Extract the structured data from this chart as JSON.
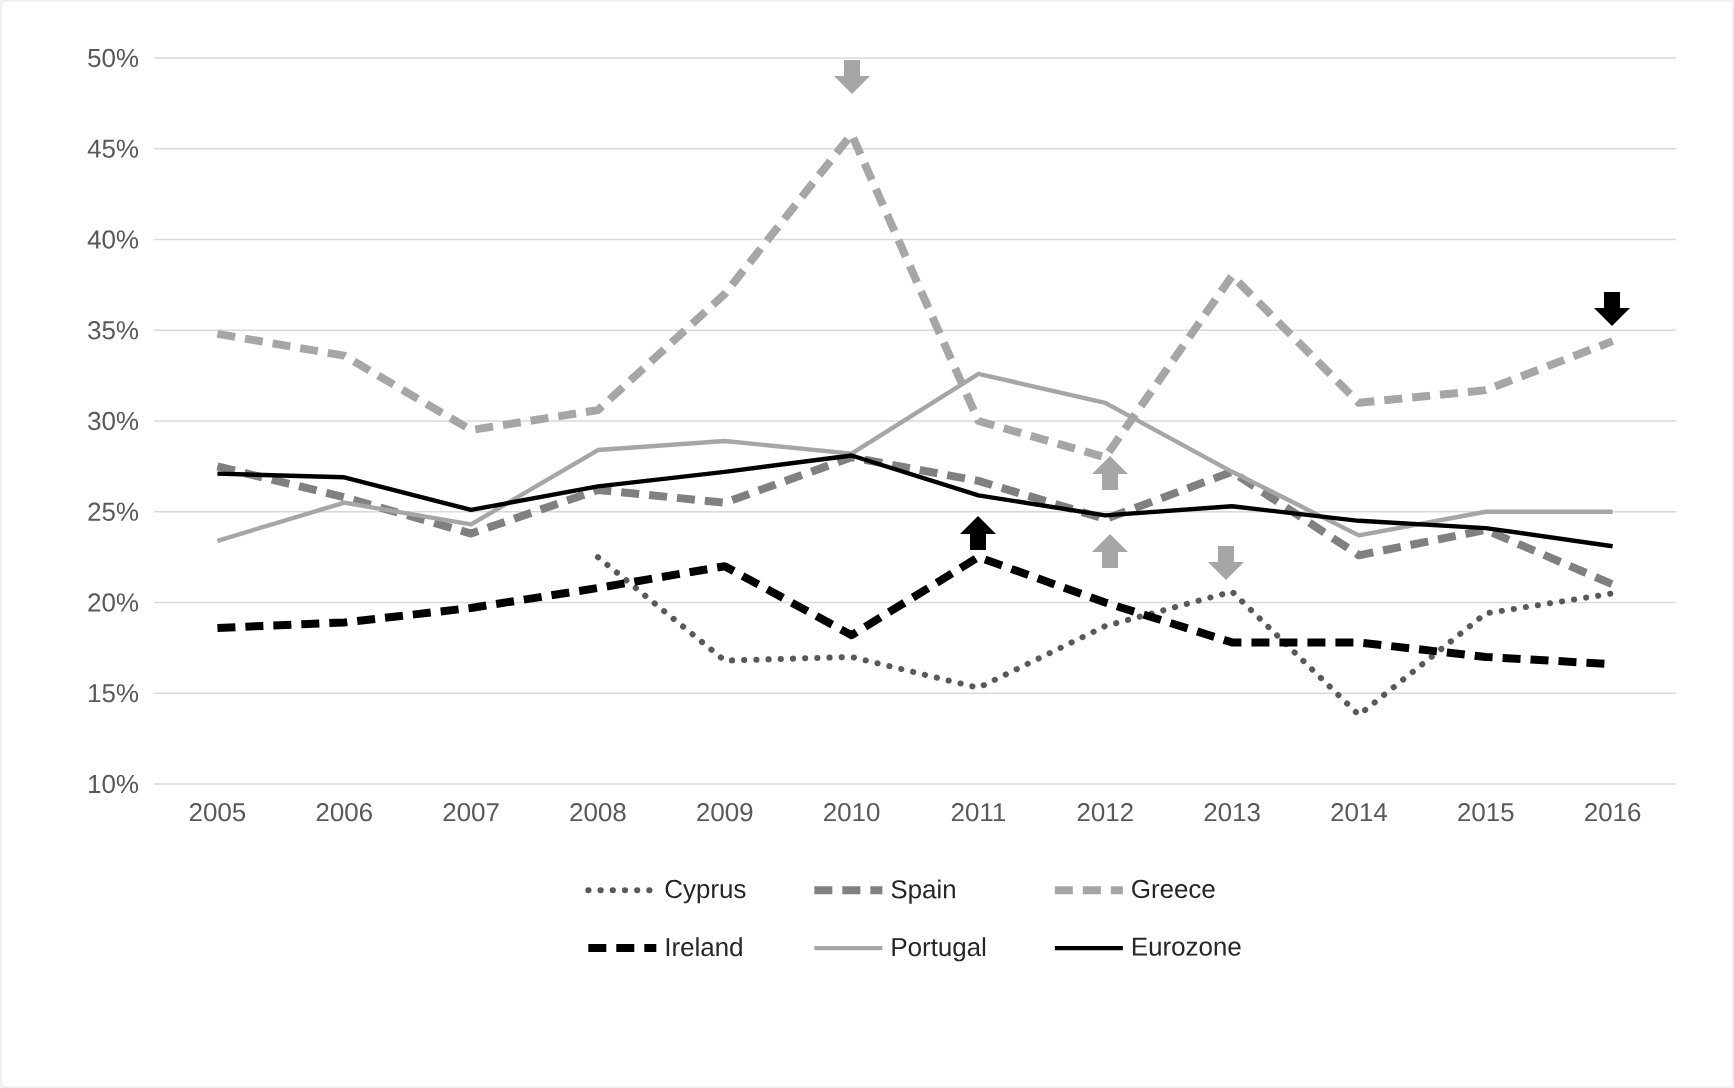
{
  "chart_data": {
    "type": "line",
    "categories": [
      "2005",
      "2006",
      "2007",
      "2008",
      "2009",
      "2010",
      "2011",
      "2012",
      "2013",
      "2014",
      "2015",
      "2016"
    ],
    "series": [
      {
        "name": "Cyprus",
        "color": "#595959",
        "line_style": "dotted",
        "values": [
          null,
          null,
          null,
          22.5,
          16.8,
          17.0,
          15.3,
          18.7,
          20.6,
          13.8,
          19.4,
          20.5
        ]
      },
      {
        "name": "Spain",
        "color": "#808080",
        "line_style": "dashed",
        "values": [
          27.5,
          25.8,
          23.8,
          26.2,
          25.5,
          28.0,
          26.7,
          24.6,
          27.2,
          22.6,
          24.0,
          21.0
        ]
      },
      {
        "name": "Greece",
        "color": "#a6a6a6",
        "line_style": "dashed",
        "values": [
          34.8,
          33.6,
          29.5,
          30.6,
          37.0,
          45.8,
          30.0,
          28.0,
          38.0,
          31.0,
          31.7,
          34.4
        ]
      },
      {
        "name": "Ireland",
        "color": "#000000",
        "line_style": "dashed",
        "values": [
          18.6,
          18.9,
          19.7,
          20.8,
          22.0,
          18.2,
          22.5,
          20.0,
          17.8,
          17.8,
          17.0,
          16.6
        ]
      },
      {
        "name": "Portugal",
        "color": "#a6a6a6",
        "line_style": "solid",
        "values": [
          23.4,
          25.5,
          24.3,
          28.4,
          28.9,
          28.2,
          32.6,
          31.0,
          27.2,
          23.7,
          25.0,
          25.0
        ]
      },
      {
        "name": "Eurozone",
        "color": "#000000",
        "line_style": "solid",
        "values": [
          27.1,
          26.9,
          25.1,
          26.4,
          27.2,
          28.1,
          25.9,
          24.8,
          25.3,
          24.5,
          24.1,
          23.1
        ]
      }
    ],
    "ylim": [
      10,
      50
    ],
    "yticks": [
      {
        "value": 10,
        "label": "10%"
      },
      {
        "value": 15,
        "label": "15%"
      },
      {
        "value": 20,
        "label": "20%"
      },
      {
        "value": 25,
        "label": "25%"
      },
      {
        "value": 30,
        "label": "30%"
      },
      {
        "value": 35,
        "label": "35%"
      },
      {
        "value": 40,
        "label": "40%"
      },
      {
        "value": 45,
        "label": "45%"
      },
      {
        "value": 50,
        "label": "50%"
      }
    ],
    "grid": "y",
    "legend": "bottom"
  }
}
